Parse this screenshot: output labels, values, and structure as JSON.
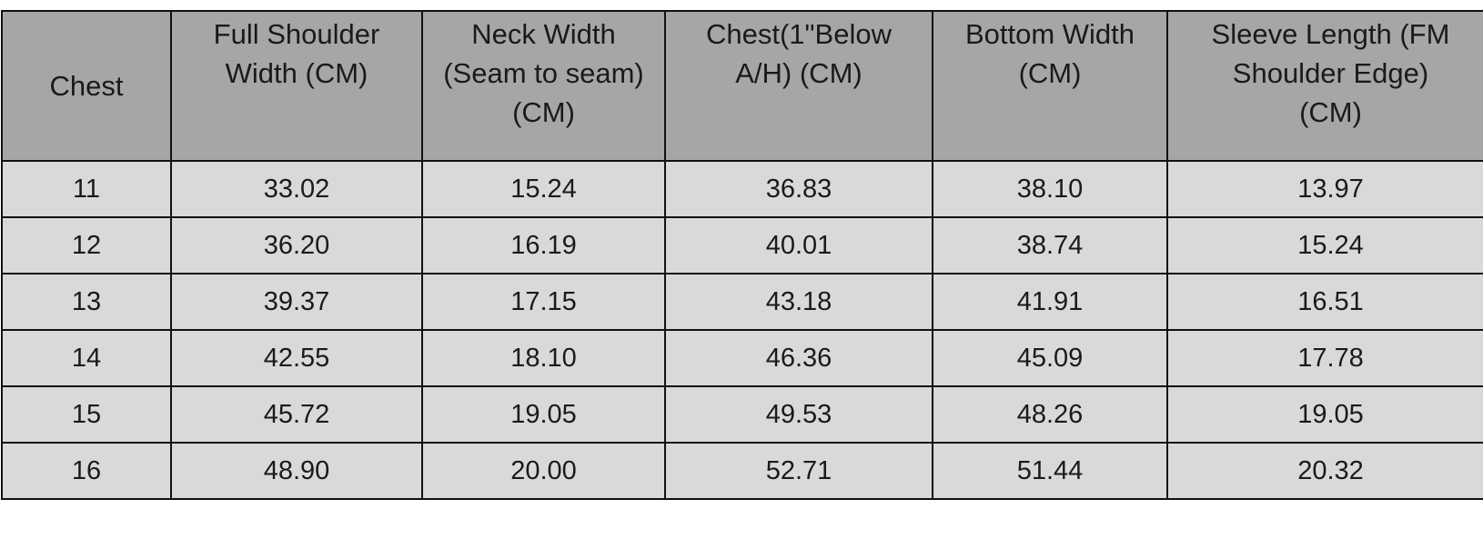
{
  "table": {
    "headers": [
      "Chest",
      "Full Shoulder\nWidth (CM)",
      "Neck Width\n(Seam to seam)\n(CM)",
      "Chest(1\"Below\nA/H) (CM)",
      "Bottom Width\n(CM)",
      "Sleeve Length (FM\nShoulder Edge)\n(CM)"
    ],
    "rows": [
      [
        "11",
        "33.02",
        "15.24",
        "36.83",
        "38.10",
        "13.97"
      ],
      [
        "12",
        "36.20",
        "16.19",
        "40.01",
        "38.74",
        "15.24"
      ],
      [
        "13",
        "39.37",
        "17.15",
        "43.18",
        "41.91",
        "16.51"
      ],
      [
        "14",
        "42.55",
        "18.10",
        "46.36",
        "45.09",
        "17.78"
      ],
      [
        "15",
        "45.72",
        "19.05",
        "49.53",
        "48.26",
        "19.05"
      ],
      [
        "16",
        "48.90",
        "20.00",
        "52.71",
        "51.44",
        "20.32"
      ]
    ]
  },
  "colors": {
    "header_bg": "#a6a6a6",
    "body_bg": "#d9d9d9",
    "border": "#111111",
    "text": "#1a1a1a"
  }
}
